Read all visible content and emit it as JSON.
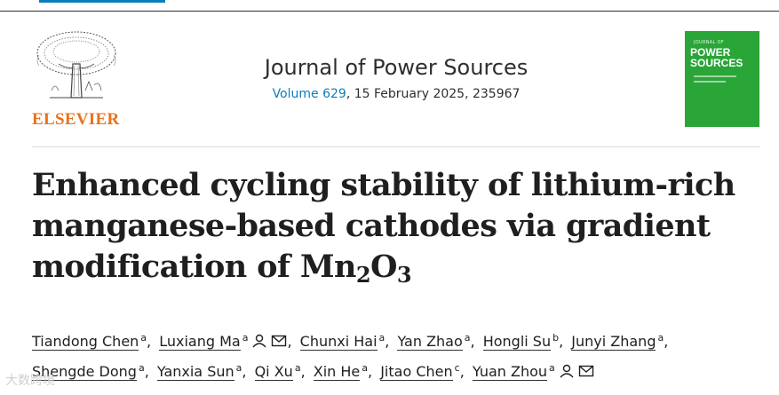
{
  "publisher": {
    "name": "ELSEVIER",
    "logo_icon": "elsevier-tree-icon"
  },
  "journal": {
    "name": "Journal of Power Sources",
    "volume_link": "Volume 629",
    "citation_rest": ", 15 February 2025, 235967"
  },
  "cover": {
    "small_text": "JOURNAL OF",
    "title_line1": "POWER",
    "title_line2": "SOURCES",
    "color": "#2aa538"
  },
  "article": {
    "title_line1": "Enhanced cycling stability of lithium-rich",
    "title_line2": "manganese-based cathodes via gradient",
    "title_line3_prefix": "modification of Mn",
    "title_sub1": "2",
    "title_mid": "O",
    "title_sub2": "3"
  },
  "authors": [
    {
      "name": "Tiandong Chen",
      "aff": "a"
    },
    {
      "name": "Luxiang Ma",
      "aff": "a"
    },
    {
      "name": "Chunxi Hai",
      "aff": "a"
    },
    {
      "name": "Yan Zhao",
      "aff": "a"
    },
    {
      "name": "Hongli Su",
      "aff": "b"
    },
    {
      "name": "Junyi Zhang",
      "aff": "a"
    },
    {
      "name": "Shengde Dong",
      "aff": "a"
    },
    {
      "name": "Yanxia Sun",
      "aff": "a"
    },
    {
      "name": "Qi Xu",
      "aff": "a"
    },
    {
      "name": "Xin He",
      "aff": "a"
    },
    {
      "name": "Jitao Chen",
      "aff": "c"
    },
    {
      "name": "Yuan Zhou",
      "aff": "a"
    }
  ],
  "watermark": "大数跨境",
  "colors": {
    "link": "#0c7dbb",
    "brand_orange": "#e9711c",
    "text": "#1f1f1f"
  }
}
